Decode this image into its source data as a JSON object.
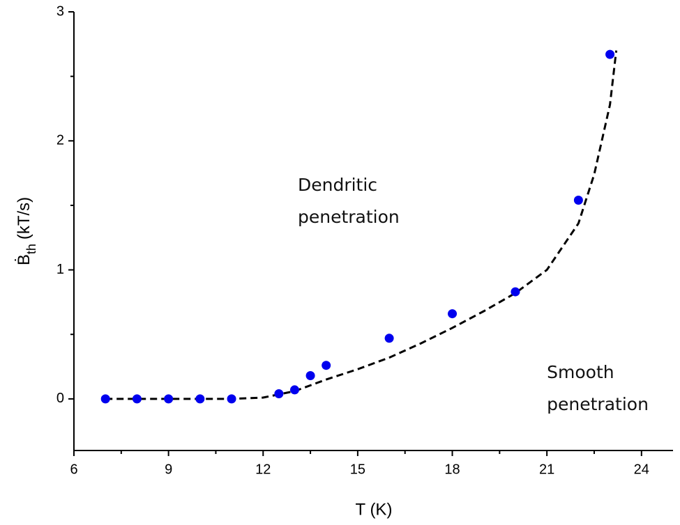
{
  "chart_data": {
    "type": "scatter",
    "x_label": "T (K)",
    "y_label_parts": [
      "Ḃ",
      "th",
      "(kT/s)"
    ],
    "xlim": [
      6,
      25
    ],
    "xticks": [
      6,
      9,
      12,
      15,
      18,
      21,
      24
    ],
    "ylim": [
      -0.4,
      3
    ],
    "yticks": [
      0,
      1,
      2,
      3
    ],
    "points": {
      "color": "#0000ee",
      "x": [
        7,
        8,
        9,
        10,
        11,
        12.5,
        13,
        13.5,
        14,
        16,
        18,
        20,
        22,
        23
      ],
      "y": [
        0,
        0,
        0,
        0,
        0,
        0.04,
        0.07,
        0.18,
        0.26,
        0.47,
        0.66,
        0.83,
        1.54,
        2.67
      ]
    },
    "fit": {
      "color": "#000000",
      "dashed": true,
      "x": [
        7,
        9,
        11,
        12,
        13,
        14,
        15,
        16,
        17,
        18,
        19,
        20,
        21,
        22,
        22.5,
        23,
        23.2
      ],
      "y": [
        0,
        0,
        0,
        0.01,
        0.06,
        0.15,
        0.23,
        0.32,
        0.43,
        0.55,
        0.68,
        0.82,
        1.0,
        1.36,
        1.74,
        2.28,
        2.7
      ]
    },
    "annotations": [
      {
        "x": 13.1,
        "y": 1.65,
        "lines": [
          "Dendritic",
          "penetration"
        ]
      },
      {
        "x": 21.0,
        "y": 0.2,
        "lines": [
          "Smooth",
          "penetration"
        ]
      }
    ]
  }
}
